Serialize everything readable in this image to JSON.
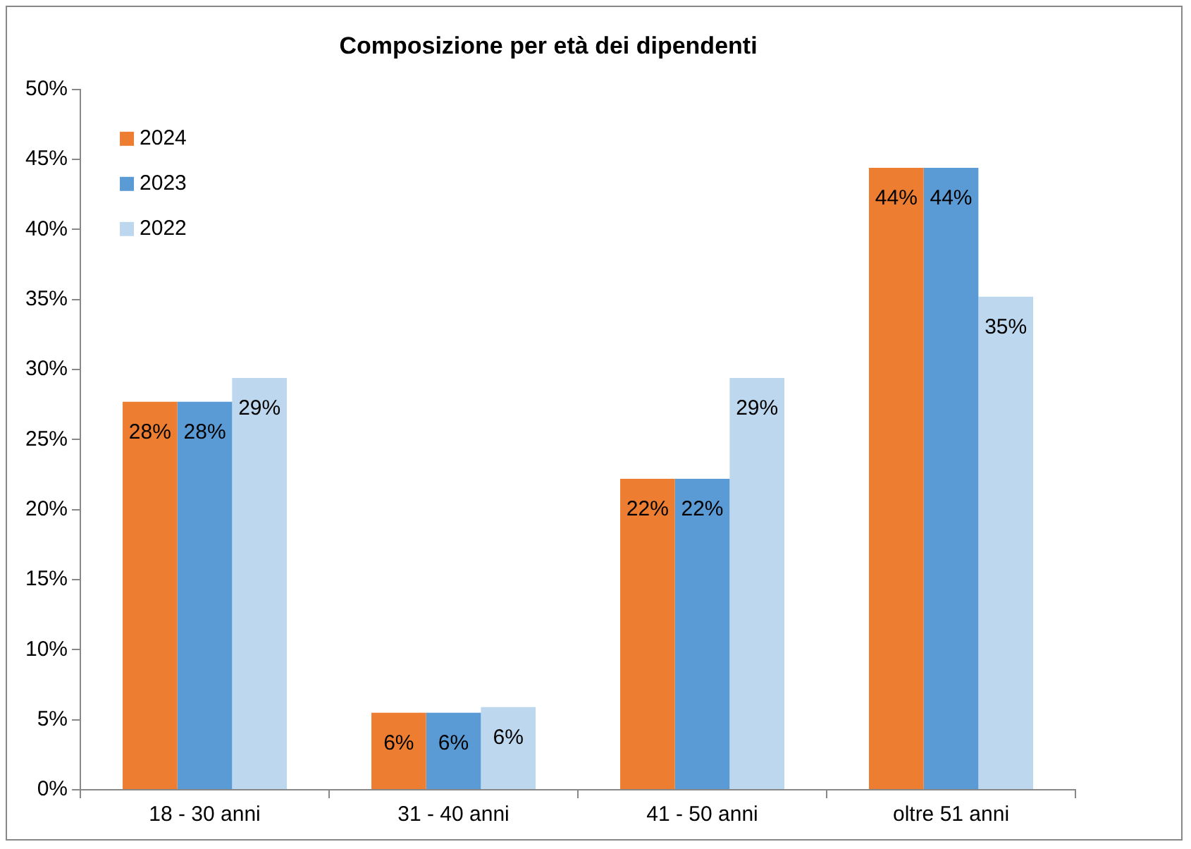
{
  "chart_data": {
    "type": "bar",
    "title": "Composizione per età dei dipendenti",
    "categories": [
      "18 - 30 anni",
      "31 - 40 anni",
      "41 - 50 anni",
      "oltre 51 anni"
    ],
    "series": [
      {
        "name": "2024",
        "color": "#ed7d31",
        "values": [
          27.7,
          5.5,
          22.2,
          44.4
        ],
        "value_labels": [
          "28%",
          "6%",
          "22%",
          "44%"
        ]
      },
      {
        "name": "2023",
        "color": "#5b9bd5",
        "values": [
          27.7,
          5.5,
          22.2,
          44.4
        ],
        "value_labels": [
          "28%",
          "6%",
          "22%",
          "44%"
        ]
      },
      {
        "name": "2022",
        "color": "#bdd7ee",
        "values": [
          29.4,
          5.9,
          29.4,
          35.2
        ],
        "value_labels": [
          "29%",
          "6%",
          "29%",
          "35%"
        ]
      }
    ],
    "ylim": [
      0,
      50
    ],
    "yticks": [
      {
        "value": 0,
        "label": "0%"
      },
      {
        "value": 5,
        "label": "5%"
      },
      {
        "value": 10,
        "label": "10%"
      },
      {
        "value": 15,
        "label": "15%"
      },
      {
        "value": 20,
        "label": "20%"
      },
      {
        "value": 25,
        "label": "25%"
      },
      {
        "value": 30,
        "label": "30%"
      },
      {
        "value": 35,
        "label": "35%"
      },
      {
        "value": 40,
        "label": "40%"
      },
      {
        "value": 45,
        "label": "45%"
      },
      {
        "value": 50,
        "label": "50%"
      }
    ],
    "grid": false,
    "legend": "top left"
  }
}
